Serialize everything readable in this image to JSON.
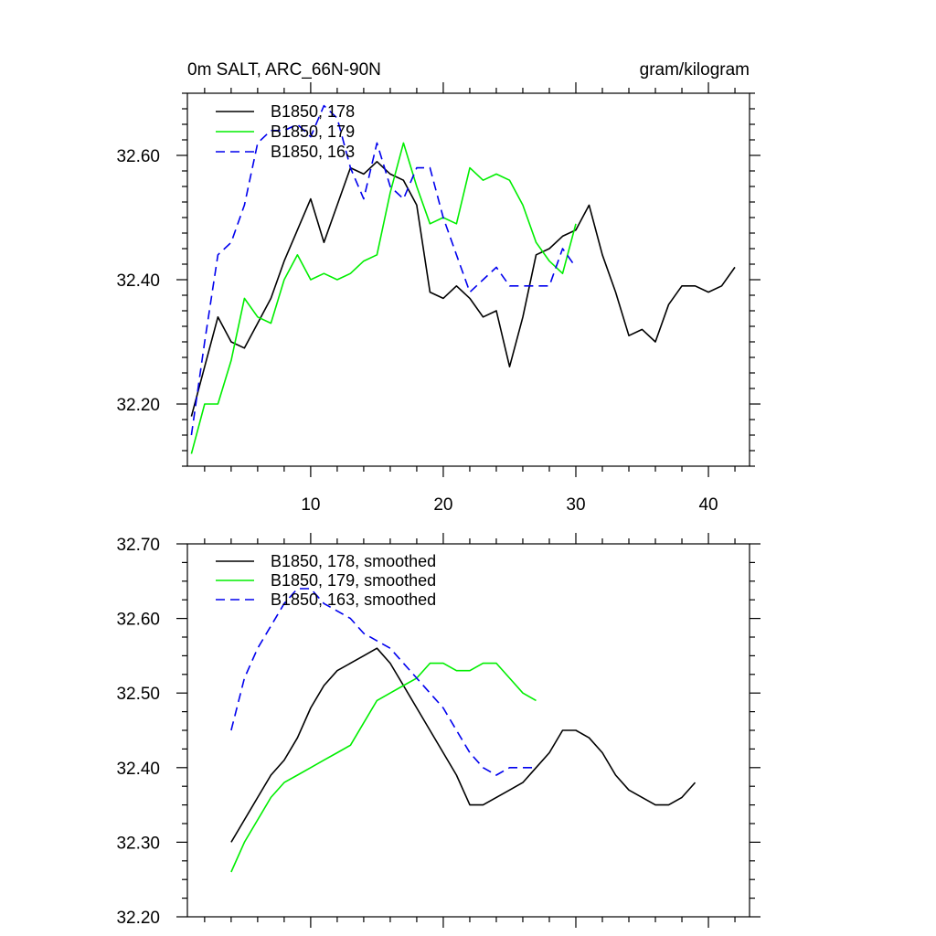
{
  "chart_data": [
    {
      "type": "line",
      "title_left": "0m SALT, ARC_66N-90N",
      "title_right": "gram/kilogram",
      "xlabel": "",
      "ylabel": "",
      "xlim": [
        0.7,
        43.1
      ],
      "ylim": [
        32.1,
        32.7
      ],
      "xticks": [
        10,
        20,
        30,
        40
      ],
      "xtick_labels": [
        "10",
        "20",
        "30",
        "40"
      ],
      "yticks": [
        32.2,
        32.4,
        32.6
      ],
      "ytick_labels": [
        "32.20",
        "32.40",
        "32.60"
      ],
      "legend_position": "top-left",
      "series": [
        {
          "name": "B1850, 178",
          "color": "#000000",
          "dash": "solid",
          "x": [
            1,
            2,
            3,
            4,
            5,
            6,
            7,
            8,
            9,
            10,
            11,
            12,
            13,
            14,
            15,
            16,
            17,
            18,
            19,
            20,
            21,
            22,
            23,
            24,
            25,
            26,
            27,
            28,
            29,
            30,
            31,
            32,
            33,
            34,
            35,
            36,
            37,
            38,
            39,
            40,
            41,
            42
          ],
          "values": [
            32.18,
            32.26,
            32.34,
            32.3,
            32.29,
            32.33,
            32.37,
            32.43,
            32.48,
            32.53,
            32.46,
            32.52,
            32.58,
            32.57,
            32.59,
            32.57,
            32.56,
            32.52,
            32.38,
            32.37,
            32.39,
            32.37,
            32.34,
            32.35,
            32.26,
            32.34,
            32.44,
            32.45,
            32.47,
            32.48,
            32.52,
            32.44,
            32.38,
            32.31,
            32.32,
            32.3,
            32.36,
            32.39,
            32.39,
            32.38,
            32.39,
            32.42
          ]
        },
        {
          "name": "B1850, 179",
          "color": "#00ee00",
          "dash": "solid",
          "x": [
            1,
            2,
            3,
            4,
            5,
            6,
            7,
            8,
            9,
            10,
            11,
            12,
            13,
            14,
            15,
            16,
            17,
            18,
            19,
            20,
            21,
            22,
            23,
            24,
            25,
            26,
            27,
            28,
            29,
            30
          ],
          "values": [
            32.12,
            32.2,
            32.2,
            32.27,
            32.37,
            32.34,
            32.33,
            32.4,
            32.44,
            32.4,
            32.41,
            32.4,
            32.41,
            32.43,
            32.44,
            32.54,
            32.62,
            32.55,
            32.49,
            32.5,
            32.49,
            32.58,
            32.56,
            32.57,
            32.56,
            32.52,
            32.46,
            32.43,
            32.41,
            32.49
          ]
        },
        {
          "name": "B1850, 163",
          "color": "#0000ee",
          "dash": "dashed",
          "x": [
            1,
            2,
            3,
            4,
            5,
            6,
            7,
            8,
            9,
            10,
            11,
            12,
            13,
            14,
            15,
            16,
            17,
            18,
            19,
            20,
            21,
            22,
            23,
            24,
            25,
            26,
            27,
            28,
            29,
            30
          ],
          "values": [
            32.15,
            32.3,
            32.44,
            32.46,
            32.52,
            32.62,
            32.64,
            32.64,
            32.65,
            32.63,
            32.68,
            32.66,
            32.58,
            32.53,
            32.62,
            32.55,
            32.53,
            32.58,
            32.58,
            32.5,
            32.44,
            32.38,
            32.4,
            32.42,
            32.39,
            32.39,
            32.39,
            32.39,
            32.45,
            32.42
          ]
        }
      ]
    },
    {
      "type": "line",
      "title_left": "",
      "title_right": "",
      "xlabel": "",
      "ylabel": "",
      "xlim": [
        0.7,
        43.1
      ],
      "ylim": [
        32.2,
        32.7
      ],
      "xticks": [
        10,
        20,
        30,
        40
      ],
      "xtick_labels": [],
      "yticks": [
        32.2,
        32.3,
        32.4,
        32.5,
        32.6,
        32.7
      ],
      "ytick_labels": [
        "32.20",
        "32.30",
        "32.40",
        "32.50",
        "32.60",
        "32.70"
      ],
      "legend_position": "top-left",
      "series": [
        {
          "name": "B1850, 178, smoothed",
          "color": "#000000",
          "dash": "solid",
          "x": [
            4,
            5,
            6,
            7,
            8,
            9,
            10,
            11,
            12,
            13,
            14,
            15,
            16,
            17,
            18,
            19,
            20,
            21,
            22,
            23,
            24,
            25,
            26,
            27,
            28,
            29,
            30,
            31,
            32,
            33,
            34,
            35,
            36,
            37,
            38,
            39
          ],
          "values": [
            32.3,
            32.33,
            32.36,
            32.39,
            32.41,
            32.44,
            32.48,
            32.51,
            32.53,
            32.54,
            32.55,
            32.56,
            32.54,
            32.51,
            32.48,
            32.45,
            32.42,
            32.39,
            32.35,
            32.35,
            32.36,
            32.37,
            32.38,
            32.4,
            32.42,
            32.45,
            32.45,
            32.44,
            32.42,
            32.39,
            32.37,
            32.36,
            32.35,
            32.35,
            32.36,
            32.38
          ]
        },
        {
          "name": "B1850, 179, smoothed",
          "color": "#00ee00",
          "dash": "solid",
          "x": [
            4,
            5,
            6,
            7,
            8,
            9,
            10,
            11,
            12,
            13,
            14,
            15,
            16,
            17,
            18,
            19,
            20,
            21,
            22,
            23,
            24,
            25,
            26,
            27
          ],
          "values": [
            32.26,
            32.3,
            32.33,
            32.36,
            32.38,
            32.39,
            32.4,
            32.41,
            32.42,
            32.43,
            32.46,
            32.49,
            32.5,
            32.51,
            32.52,
            32.54,
            32.54,
            32.53,
            32.53,
            32.54,
            32.54,
            32.52,
            32.5,
            32.49
          ]
        },
        {
          "name": "B1850, 163, smoothed",
          "color": "#0000ee",
          "dash": "dashed",
          "x": [
            4,
            5,
            6,
            7,
            8,
            9,
            10,
            11,
            12,
            13,
            14,
            15,
            16,
            17,
            18,
            19,
            20,
            21,
            22,
            23,
            24,
            25,
            26,
            27
          ],
          "values": [
            32.45,
            32.52,
            32.56,
            32.59,
            32.62,
            32.64,
            32.64,
            32.62,
            32.61,
            32.6,
            32.58,
            32.57,
            32.56,
            32.54,
            32.52,
            32.5,
            32.48,
            32.45,
            32.42,
            32.4,
            32.39,
            32.4,
            32.4,
            32.4
          ]
        }
      ]
    }
  ]
}
